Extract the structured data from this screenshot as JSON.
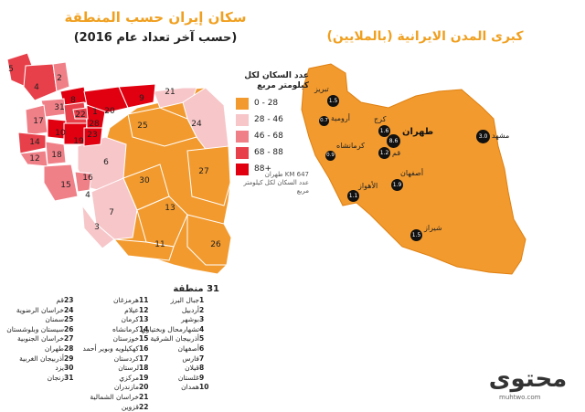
{
  "titles": {
    "left_main": "سكان إيران حسب المنطقة",
    "left_sub": "(حسب آخر تعداد عام 2016)",
    "right_main": "كبرى المدن الايرانية (بالملايين)"
  },
  "legend": {
    "header": "عدد السكان لكل كيلومتر مربع",
    "items": [
      {
        "label": "0 - 28",
        "color": "#f29a2e"
      },
      {
        "label": "28 - 46",
        "color": "#f7c6c9"
      },
      {
        "label": "46 - 68",
        "color": "#f08088"
      },
      {
        "label": "68 - 88",
        "color": "#e8404a"
      },
      {
        "label": "88+",
        "color": "#e00010"
      }
    ]
  },
  "note": {
    "line1": "647 KM طهران",
    "line2": "عدد السكان لكل كيلومتر مربع"
  },
  "region_numbers": [
    "1",
    "2",
    "3",
    "4",
    "5",
    "6",
    "7",
    "8",
    "9",
    "10",
    "11",
    "12",
    "13",
    "14",
    "15",
    "16",
    "17",
    "18",
    "19",
    "20",
    "21",
    "22",
    "23",
    "24",
    "25",
    "26",
    "27",
    "28",
    "29",
    "30",
    "31"
  ],
  "cities": [
    {
      "name": "تبريز",
      "value": "1.5"
    },
    {
      "name": "أرومية",
      "value": "0.7"
    },
    {
      "name": "كرج",
      "value": "1.6"
    },
    {
      "name": "طهران",
      "value": "8.6"
    },
    {
      "name": "قم",
      "value": "1.2"
    },
    {
      "name": "كرمانشاه",
      "value": "0.9"
    },
    {
      "name": "مشهد",
      "value": "3.0"
    },
    {
      "name": "أصفهان",
      "value": "1.9"
    },
    {
      "name": "الأهواز",
      "value": "1.1"
    },
    {
      "name": "شيراز",
      "value": "1.5"
    }
  ],
  "provinces_header": "31 منطقة",
  "provinces": [
    {
      "n": "1",
      "name": "جبال البرز"
    },
    {
      "n": "2",
      "name": "أردبيل"
    },
    {
      "n": "3",
      "name": "بوشهر"
    },
    {
      "n": "4",
      "name": "تشهارمحال وبختياري"
    },
    {
      "n": "5",
      "name": "أذربيجان الشرقية"
    },
    {
      "n": "6",
      "name": "أصفهان"
    },
    {
      "n": "7",
      "name": "فارس"
    },
    {
      "n": "8",
      "name": "قيلان"
    },
    {
      "n": "9",
      "name": "غلستان"
    },
    {
      "n": "10",
      "name": "همدان"
    },
    {
      "n": "11",
      "name": "هرمزغان"
    },
    {
      "n": "12",
      "name": "عيلام"
    },
    {
      "n": "13",
      "name": "كرمان"
    },
    {
      "n": "14",
      "name": "كرمانشاه"
    },
    {
      "n": "15",
      "name": "خوزستان"
    },
    {
      "n": "16",
      "name": "كهكيلويه وبوير أحمد"
    },
    {
      "n": "17",
      "name": "كردستان"
    },
    {
      "n": "18",
      "name": "لرستان"
    },
    {
      "n": "19",
      "name": "مركزي"
    },
    {
      "n": "20",
      "name": "مازندران"
    },
    {
      "n": "21",
      "name": "خراسان الشمالية"
    },
    {
      "n": "22",
      "name": "قزوين"
    },
    {
      "n": "23",
      "name": "قم"
    },
    {
      "n": "24",
      "name": "خراسان الرضوية"
    },
    {
      "n": "25",
      "name": "سمنان"
    },
    {
      "n": "26",
      "name": "سيستان وبلوشستان"
    },
    {
      "n": "27",
      "name": "خراسان الجنوبية"
    },
    {
      "n": "28",
      "name": "طهران"
    },
    {
      "n": "29",
      "name": "أذربيجان الغربية"
    },
    {
      "n": "30",
      "name": "يزد"
    },
    {
      "n": "31",
      "name": "زنجان"
    }
  ],
  "logo": {
    "word": "محتوى",
    "url": "muhtwo.com"
  }
}
